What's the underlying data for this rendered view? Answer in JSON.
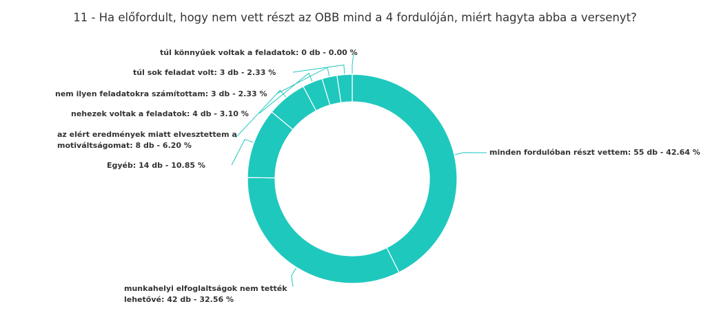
{
  "chart_data": {
    "type": "pie",
    "donut": true,
    "title": "11 - Ha előfordult, hogy nem vett részt az OBB mind a 4 fordulóján, miért hagyta abba a versenyt?",
    "categories": [
      "minden fordulóban részt vettem:",
      "munkahelyi elfoglaltságok nem tették lehetővé:",
      "Egyéb:",
      "az elért eredmények miatt elvesztettem a motiváltságomat:",
      "nehezek voltak a feladatok:",
      "nem ilyen feladatokra számítottam:",
      "túl sok feladat volt:",
      "túl könnyűek voltak a feladatok:"
    ],
    "values": [
      55,
      42,
      14,
      8,
      4,
      3,
      3,
      0
    ],
    "value_labels": [
      "55 db - 42.64 %",
      "42 db - 32.56 %",
      "14 db - 10.85 %",
      "8 db - 6.20 %",
      "4 db - 3.10 %",
      "3 db - 2.33 %",
      "3 db - 2.33 %",
      "0 db - 0.00 %"
    ],
    "color": "#1fc8bd"
  }
}
